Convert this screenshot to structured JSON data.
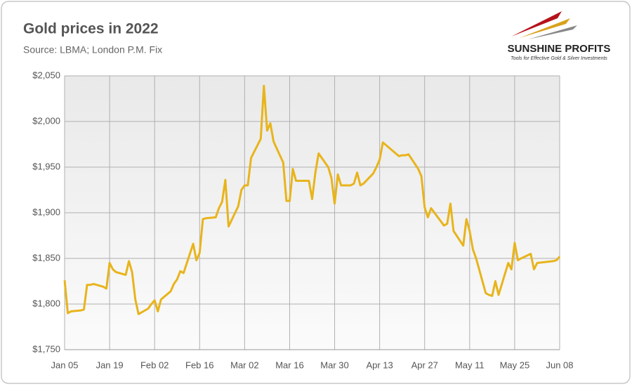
{
  "chart_data": {
    "type": "line",
    "title": "Gold prices in 2022",
    "subtitle": "Source: LBMA; London P.M. Fix",
    "logo": {
      "name": "SUNSHINE PROFITS",
      "tagline": "Tools for Effective Gold & Silver Investments"
    },
    "x": [
      "Jan 05",
      "Jan 06",
      "Jan 07",
      "Jan 10",
      "Jan 11",
      "Jan 12",
      "Jan 13",
      "Jan 14",
      "Jan 17",
      "Jan 18",
      "Jan 19",
      "Jan 20",
      "Jan 21",
      "Jan 24",
      "Jan 25",
      "Jan 26",
      "Jan 27",
      "Jan 28",
      "Jan 31",
      "Feb 01",
      "Feb 02",
      "Feb 03",
      "Feb 04",
      "Feb 07",
      "Feb 08",
      "Feb 09",
      "Feb 10",
      "Feb 11",
      "Feb 14",
      "Feb 15",
      "Feb 16",
      "Feb 17",
      "Feb 18",
      "Feb 21",
      "Feb 22",
      "Feb 23",
      "Feb 24",
      "Feb 25",
      "Feb 28",
      "Mar 01",
      "Mar 02",
      "Mar 03",
      "Mar 04",
      "Mar 07",
      "Mar 08",
      "Mar 09",
      "Mar 10",
      "Mar 11",
      "Mar 14",
      "Mar 15",
      "Mar 16",
      "Mar 17",
      "Mar 18",
      "Mar 21",
      "Mar 22",
      "Mar 23",
      "Mar 24",
      "Mar 25",
      "Mar 28",
      "Mar 29",
      "Mar 30",
      "Mar 31",
      "Apr 01",
      "Apr 04",
      "Apr 05",
      "Apr 06",
      "Apr 07",
      "Apr 08",
      "Apr 11",
      "Apr 12",
      "Apr 13",
      "Apr 14",
      "Apr 19",
      "Apr 20",
      "Apr 21",
      "Apr 22",
      "Apr 25",
      "Apr 26",
      "Apr 27",
      "Apr 28",
      "Apr 29",
      "May 03",
      "May 04",
      "May 05",
      "May 06",
      "May 09",
      "May 10",
      "May 11",
      "May 12",
      "May 13",
      "May 16",
      "May 17",
      "May 18",
      "May 19",
      "May 20",
      "May 23",
      "May 24",
      "May 25",
      "May 26",
      "May 27",
      "May 30",
      "May 31",
      "Jun 01",
      "Jun 06",
      "Jun 07",
      "Jun 08"
    ],
    "series": [
      {
        "name": "Gold price",
        "color": "#e8b41c",
        "values": [
          1826,
          1790,
          1792,
          1793,
          1794,
          1821,
          1821,
          1822,
          1819,
          1817,
          1845,
          1838,
          1835,
          1832,
          1847,
          1835,
          1805,
          1789,
          1795,
          1800,
          1804,
          1792,
          1805,
          1814,
          1822,
          1827,
          1836,
          1834,
          1866,
          1848,
          1856,
          1893,
          1894,
          1895,
          1905,
          1912,
          1936,
          1885,
          1907,
          1925,
          1930,
          1930,
          1960,
          1981,
          2039,
          1990,
          1998,
          1978,
          1955,
          1913,
          1913,
          1948,
          1935,
          1935,
          1935,
          1915,
          1944,
          1965,
          1950,
          1938,
          1910,
          1942,
          1930,
          1930,
          1932,
          1944,
          1930,
          1932,
          1943,
          1950,
          1958,
          1977,
          1962,
          1963,
          1963,
          1964,
          1948,
          1940,
          1906,
          1895,
          1905,
          1886,
          1888,
          1910,
          1880,
          1864,
          1893,
          1880,
          1860,
          1850,
          1812,
          1810,
          1809,
          1825,
          1810,
          1845,
          1838,
          1867,
          1848,
          1850,
          1855,
          1838,
          1845,
          1847,
          1848,
          1852
        ]
      }
    ],
    "xticks": [
      "Jan 05",
      "Jan 19",
      "Feb 02",
      "Feb 16",
      "Mar 02",
      "Mar 16",
      "Mar 30",
      "Apr 13",
      "Apr 27",
      "May 11",
      "May 25",
      "Jun 08"
    ],
    "ylim": [
      1750,
      2050
    ],
    "yticks": [
      {
        "value": 1750,
        "label": "$1,750"
      },
      {
        "value": 1800,
        "label": "$1,800"
      },
      {
        "value": 1850,
        "label": "$1,850"
      },
      {
        "value": 1900,
        "label": "$1,900"
      },
      {
        "value": 1950,
        "label": "$1,950"
      },
      {
        "value": 2000,
        "label": "$2,000"
      },
      {
        "value": 2050,
        "label": "$2,050"
      }
    ],
    "grid": true
  }
}
